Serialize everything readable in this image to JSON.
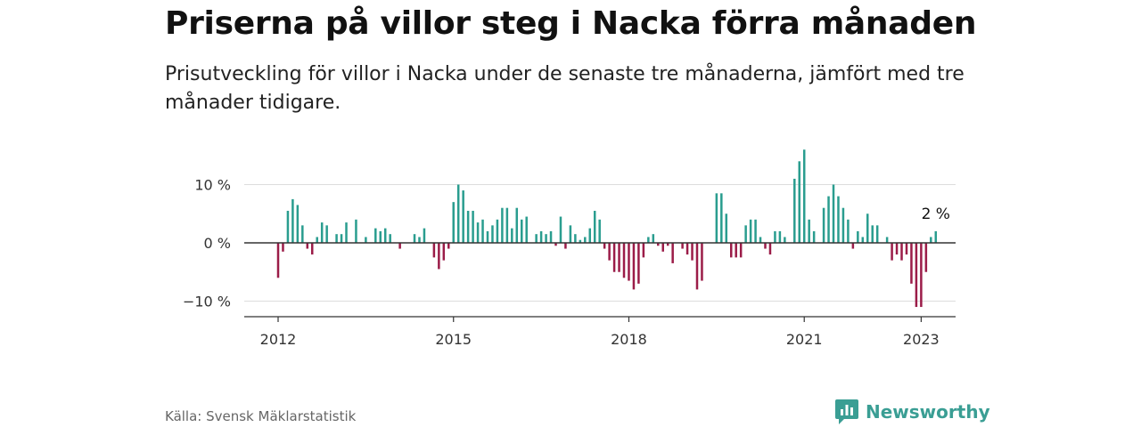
{
  "title": "Priserna på villor steg i Nacka förra månaden",
  "subtitle": "Prisutveckling för villor i Nacka under de senaste tre månaderna, jämfört med tre månader tidigare.",
  "source": "Källa: Svensk Mäklarstatistik",
  "brand": {
    "name": "Newsworthy",
    "logo_icon": "newsworthy-logo-icon"
  },
  "colors": {
    "positive": "#2a9d8f",
    "negative": "#9b1c48",
    "grid": "#dddddd",
    "axis": "#333333",
    "brand": "#3a9e94"
  },
  "chart_data": {
    "type": "bar",
    "x_start": "2012-01",
    "x_interval": "month",
    "xlabel": "",
    "ylabel": "",
    "ylim": [
      -12.5,
      17
    ],
    "yticks": [
      10,
      0,
      -10
    ],
    "ytick_labels": [
      "10 %",
      "0 %",
      "−10 %"
    ],
    "xticks": [
      "2012",
      "2015",
      "2018",
      "2021",
      "2023"
    ],
    "grid": true,
    "legend": "none",
    "annotation": {
      "text": "2 %",
      "target": "last"
    },
    "values": [
      -6,
      -1.5,
      5.5,
      7.5,
      6.5,
      3,
      -1,
      -2,
      1,
      3.5,
      3,
      0,
      1.5,
      1.5,
      3.5,
      0,
      4,
      0,
      1,
      0,
      2.5,
      2,
      2.5,
      1.5,
      0,
      -1,
      0,
      0,
      1.5,
      1,
      2.5,
      0,
      -2.5,
      -4.5,
      -3,
      -1,
      7,
      10,
      9,
      5.5,
      5.5,
      3.5,
      4,
      2,
      3,
      4,
      6,
      6,
      2.5,
      6,
      4,
      4.5,
      0,
      1.5,
      2,
      1.5,
      2,
      -0.5,
      4.5,
      -1,
      3,
      1.5,
      0.5,
      1,
      2.5,
      5.5,
      4,
      -1,
      -3,
      -5,
      -5,
      -6,
      -6.5,
      -8,
      -7,
      -2.5,
      1,
      1.5,
      -0.5,
      -1.5,
      -0.5,
      -3.5,
      0,
      -1,
      -2,
      -3,
      -8,
      -6.5,
      0,
      0,
      8.5,
      8.5,
      5,
      -2.5,
      -2.5,
      -2.5,
      3,
      4,
      4,
      1,
      -1,
      -2,
      2,
      2,
      1,
      0,
      11,
      14,
      16,
      4,
      2,
      0,
      6,
      8,
      10,
      8,
      6,
      4,
      -1,
      2,
      1,
      5,
      3,
      3,
      0,
      1,
      -3,
      -2,
      -3,
      -2,
      -7,
      -11,
      -11,
      -5,
      1,
      2
    ]
  }
}
